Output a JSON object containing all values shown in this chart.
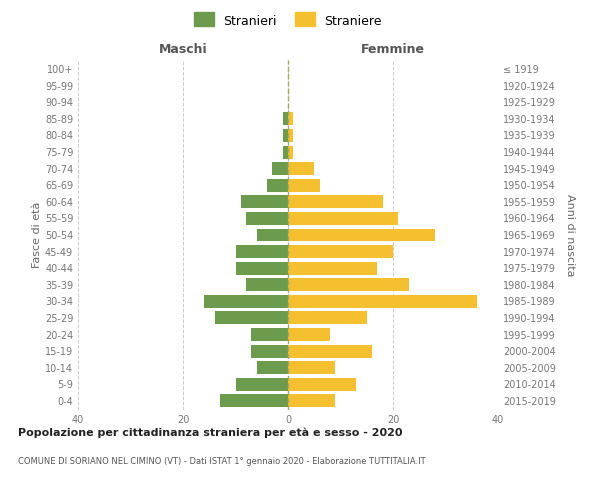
{
  "age_groups": [
    "0-4",
    "5-9",
    "10-14",
    "15-19",
    "20-24",
    "25-29",
    "30-34",
    "35-39",
    "40-44",
    "45-49",
    "50-54",
    "55-59",
    "60-64",
    "65-69",
    "70-74",
    "75-79",
    "80-84",
    "85-89",
    "90-94",
    "95-99",
    "100+"
  ],
  "birth_years": [
    "2015-2019",
    "2010-2014",
    "2005-2009",
    "2000-2004",
    "1995-1999",
    "1990-1994",
    "1985-1989",
    "1980-1984",
    "1975-1979",
    "1970-1974",
    "1965-1969",
    "1960-1964",
    "1955-1959",
    "1950-1954",
    "1945-1949",
    "1940-1944",
    "1935-1939",
    "1930-1934",
    "1925-1929",
    "1920-1924",
    "≤ 1919"
  ],
  "males": [
    13,
    10,
    6,
    7,
    7,
    14,
    16,
    8,
    10,
    10,
    6,
    8,
    9,
    4,
    3,
    1,
    1,
    1,
    0,
    0,
    0
  ],
  "females": [
    9,
    13,
    9,
    16,
    8,
    15,
    36,
    23,
    17,
    20,
    28,
    21,
    18,
    6,
    5,
    1,
    1,
    1,
    0,
    0,
    0
  ],
  "male_color": "#6d9b4e",
  "female_color": "#f5c030",
  "background_color": "#ffffff",
  "grid_color": "#cccccc",
  "title_main": "Popolazione per cittadinanza straniera per età e sesso - 2020",
  "title_sub": "COMUNE DI SORIANO NEL CIMINO (VT) - Dati ISTAT 1° gennaio 2020 - Elaborazione TUTTITALIA.IT",
  "ylabel_left": "Fasce di età",
  "ylabel_right": "Anni di nascita",
  "xlabel_left": "Maschi",
  "xlabel_right": "Femmine",
  "legend_male": "Stranieri",
  "legend_female": "Straniere",
  "xlim": 40,
  "label_color": "#777777"
}
